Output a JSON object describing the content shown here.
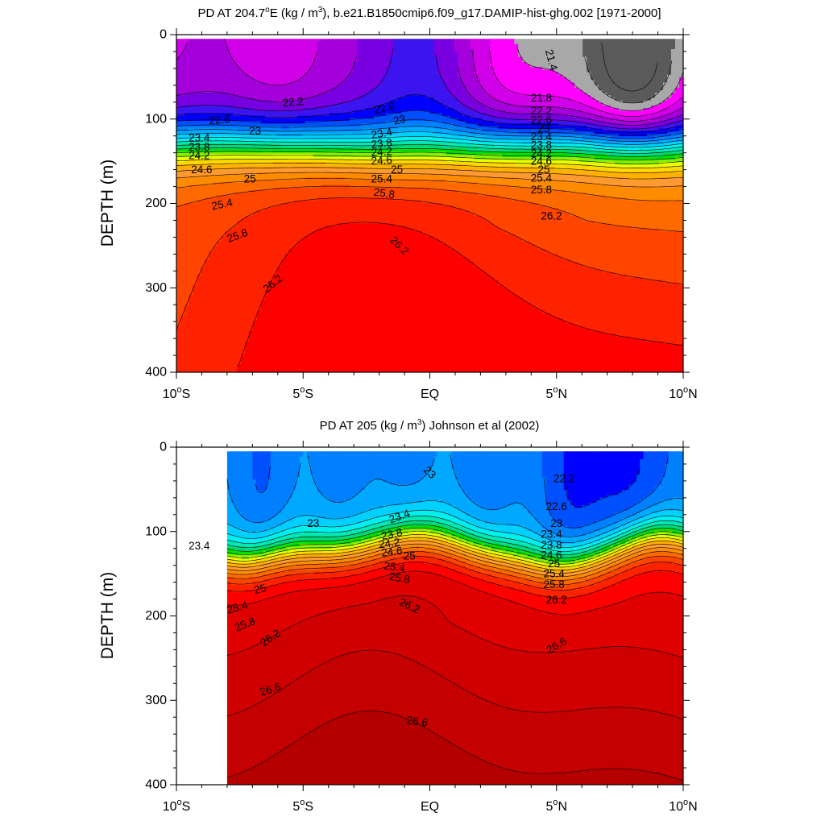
{
  "chart_data": [
    {
      "type": "contour",
      "title_main": "PD AT 204.7",
      "title_sup_o": "o",
      "title_mid": "E (kg / m",
      "title_sup_3": "3",
      "title_rest": "), b.e21.B1850cmip6.f09_g17.DAMIP-hist-ghg.002 [1971-2000]",
      "ylabel": "DEPTH (m)",
      "xlim": [
        -10,
        10
      ],
      "ylim": [
        0,
        400
      ],
      "data_xlim": [
        -10,
        10
      ],
      "y_ticks": [
        "0",
        "100",
        "200",
        "300",
        "400"
      ],
      "y_tick_values": [
        0,
        100,
        200,
        300,
        400
      ],
      "x_ticks": [
        {
          "value": -10,
          "pre": "10",
          "sup": "o",
          "post": "S"
        },
        {
          "value": -5,
          "pre": "5",
          "sup": "o",
          "post": "S"
        },
        {
          "value": 0,
          "pre": "EQ",
          "sup": "",
          "post": ""
        },
        {
          "value": 5,
          "pre": "5",
          "sup": "o",
          "post": "N"
        },
        {
          "value": 10,
          "pre": "10",
          "sup": "o",
          "post": "N"
        }
      ],
      "levels": [
        21.4,
        21.6,
        21.8,
        22.0,
        22.2,
        22.4,
        22.6,
        22.8,
        23.0,
        23.2,
        23.4,
        23.6,
        23.8,
        24.0,
        24.2,
        24.4,
        24.6,
        24.8,
        25.0,
        25.2,
        25.4,
        25.6,
        25.8,
        26.0,
        26.2,
        26.4
      ],
      "colors": [
        "#5a5a5a",
        "#a8a8a8",
        "#ff00ff",
        "#d000e8",
        "#a400dc",
        "#7800e0",
        "#3c14f0",
        "#0000ff",
        "#0050ff",
        "#0080ff",
        "#00a8ff",
        "#00d0ff",
        "#00f0f0",
        "#00e8b4",
        "#00d878",
        "#00e000",
        "#80f000",
        "#e8ff00",
        "#ffd700",
        "#ffb000",
        "#ff9a30",
        "#ff8c00",
        "#ff6a00",
        "#ff4500",
        "#ff2200",
        "#ff0000"
      ],
      "contour_labels": [
        {
          "x": 4.8,
          "y": 30,
          "text": "21.4",
          "rot": 75
        },
        {
          "x": -5.4,
          "y": 80,
          "text": "22.2",
          "rot": -5
        },
        {
          "x": -8.3,
          "y": 101,
          "text": "22.6",
          "rot": -5
        },
        {
          "x": -6.9,
          "y": 114,
          "text": "23",
          "rot": 0
        },
        {
          "x": -9.1,
          "y": 122,
          "text": "23.4",
          "rot": 0
        },
        {
          "x": -9.1,
          "y": 133,
          "text": "23.8",
          "rot": 0
        },
        {
          "x": -9.1,
          "y": 143,
          "text": "24.2",
          "rot": 0
        },
        {
          "x": -9.0,
          "y": 160,
          "text": "24.6",
          "rot": 0
        },
        {
          "x": -7.1,
          "y": 171,
          "text": "25",
          "rot": 0
        },
        {
          "x": -8.2,
          "y": 201,
          "text": "25.4",
          "rot": -12
        },
        {
          "x": -7.6,
          "y": 238,
          "text": "25.8",
          "rot": -20
        },
        {
          "x": -6.2,
          "y": 295,
          "text": "26.2",
          "rot": -40
        },
        {
          "x": -1.8,
          "y": 87,
          "text": "22.6",
          "rot": -12
        },
        {
          "x": -1.2,
          "y": 101,
          "text": "23",
          "rot": -12
        },
        {
          "x": -1.9,
          "y": 117,
          "text": "23.4",
          "rot": -10
        },
        {
          "x": -1.9,
          "y": 129,
          "text": "23.8",
          "rot": -6
        },
        {
          "x": -1.9,
          "y": 139,
          "text": "24.2",
          "rot": -4
        },
        {
          "x": -1.9,
          "y": 149,
          "text": "24.6",
          "rot": -4
        },
        {
          "x": -1.3,
          "y": 160,
          "text": "25",
          "rot": 0
        },
        {
          "x": -1.9,
          "y": 171,
          "text": "25.4",
          "rot": 0
        },
        {
          "x": -1.8,
          "y": 188,
          "text": "25.8",
          "rot": 8
        },
        {
          "x": -1.2,
          "y": 250,
          "text": "26.2",
          "rot": 45
        },
        {
          "x": 4.4,
          "y": 75,
          "text": "21.8",
          "rot": 0
        },
        {
          "x": 4.4,
          "y": 90,
          "text": "22.2",
          "rot": 0
        },
        {
          "x": 4.4,
          "y": 101,
          "text": "22.6",
          "rot": 0
        },
        {
          "x": 4.5,
          "y": 111,
          "text": "23",
          "rot": 0
        },
        {
          "x": 4.4,
          "y": 121,
          "text": "23.4",
          "rot": 0
        },
        {
          "x": 4.4,
          "y": 131,
          "text": "23.8",
          "rot": 0
        },
        {
          "x": 4.4,
          "y": 141,
          "text": "24.2",
          "rot": 0
        },
        {
          "x": 4.4,
          "y": 150,
          "text": "24.6",
          "rot": 0
        },
        {
          "x": 4.5,
          "y": 160,
          "text": "25",
          "rot": 0
        },
        {
          "x": 4.4,
          "y": 170,
          "text": "25.4",
          "rot": 0
        },
        {
          "x": 4.4,
          "y": 184,
          "text": "25.8",
          "rot": 0
        },
        {
          "x": 4.8,
          "y": 215,
          "text": "26.2",
          "rot": 0
        }
      ]
    },
    {
      "type": "contour",
      "title_main": "PD AT 205 (kg / m",
      "title_sup_o": "",
      "title_mid": "",
      "title_sup_3": "3",
      "title_rest": ") Johnson et al (2002)",
      "ylabel": "DEPTH (m)",
      "xlim": [
        -10,
        10
      ],
      "ylim": [
        0,
        400
      ],
      "data_xlim": [
        -8,
        10
      ],
      "y_ticks": [
        "0",
        "100",
        "200",
        "300",
        "400"
      ],
      "y_tick_values": [
        0,
        100,
        200,
        300,
        400
      ],
      "x_ticks": [
        {
          "value": -10,
          "pre": "10",
          "sup": "o",
          "post": "S"
        },
        {
          "value": -5,
          "pre": "5",
          "sup": "o",
          "post": "S"
        },
        {
          "value": 0,
          "pre": "EQ",
          "sup": "",
          "post": ""
        },
        {
          "value": 5,
          "pre": "5",
          "sup": "o",
          "post": "N"
        },
        {
          "value": 10,
          "pre": "10",
          "sup": "o",
          "post": "N"
        }
      ],
      "levels": [
        22.0,
        22.2,
        22.4,
        22.6,
        22.8,
        23.0,
        23.2,
        23.4,
        23.6,
        23.8,
        24.0,
        24.2,
        24.4,
        24.6,
        24.8,
        25.0,
        25.2,
        25.4,
        25.6,
        25.8,
        26.0,
        26.2,
        26.4,
        26.6,
        26.8
      ],
      "colors": [
        "#7800e0",
        "#3c14f0",
        "#0000ff",
        "#0050ff",
        "#0080ff",
        "#00a8ff",
        "#00d0ff",
        "#00f0f0",
        "#00e8b4",
        "#00d878",
        "#00e000",
        "#80f000",
        "#e8ff00",
        "#ffd700",
        "#ffb000",
        "#ff9a30",
        "#ff8c00",
        "#ff6a00",
        "#ff4500",
        "#ff2200",
        "#ff0000",
        "#e00000",
        "#d00000",
        "#c40000",
        "#b40000"
      ],
      "contour_labels": [
        {
          "x": 0.0,
          "y": 30,
          "text": "23",
          "rot": 45
        },
        {
          "x": 5.3,
          "y": 37,
          "text": "22.2",
          "rot": 0
        },
        {
          "x": 5.0,
          "y": 70,
          "text": "22.6",
          "rot": 0
        },
        {
          "x": 5.0,
          "y": 90,
          "text": "23",
          "rot": 0
        },
        {
          "x": -4.6,
          "y": 90,
          "text": "23",
          "rot": 0
        },
        {
          "x": -9.1,
          "y": 117,
          "text": "23.4",
          "rot": 0
        },
        {
          "x": -1.2,
          "y": 82,
          "text": "23.4",
          "rot": -20
        },
        {
          "x": -1.5,
          "y": 103,
          "text": "23.8",
          "rot": -12
        },
        {
          "x": -1.6,
          "y": 114,
          "text": "24.2",
          "rot": -8
        },
        {
          "x": -1.5,
          "y": 124,
          "text": "24.6",
          "rot": -6
        },
        {
          "x": -0.8,
          "y": 129,
          "text": "25",
          "rot": 0
        },
        {
          "x": -1.4,
          "y": 142,
          "text": "25.4",
          "rot": 8
        },
        {
          "x": -1.2,
          "y": 155,
          "text": "25.8",
          "rot": 10
        },
        {
          "x": -0.8,
          "y": 188,
          "text": "26.2",
          "rot": 25
        },
        {
          "x": 4.8,
          "y": 103,
          "text": "23.4",
          "rot": 0
        },
        {
          "x": 4.8,
          "y": 116,
          "text": "23.8",
          "rot": 0
        },
        {
          "x": 4.8,
          "y": 128,
          "text": "24.6",
          "rot": 0
        },
        {
          "x": 4.9,
          "y": 138,
          "text": "25",
          "rot": 0
        },
        {
          "x": 4.9,
          "y": 150,
          "text": "25.4",
          "rot": 0
        },
        {
          "x": 4.9,
          "y": 163,
          "text": "25.8",
          "rot": 0
        },
        {
          "x": 5.0,
          "y": 181,
          "text": "26.2",
          "rot": 0
        },
        {
          "x": -6.7,
          "y": 168,
          "text": "25",
          "rot": -12
        },
        {
          "x": -7.6,
          "y": 190,
          "text": "25.4",
          "rot": -16
        },
        {
          "x": -7.3,
          "y": 210,
          "text": "25.8",
          "rot": -22
        },
        {
          "x": -6.3,
          "y": 226,
          "text": "26.2",
          "rot": -35
        },
        {
          "x": 5.0,
          "y": 235,
          "text": "26.6",
          "rot": -30
        },
        {
          "x": -6.3,
          "y": 287,
          "text": "26.6",
          "rot": -18
        },
        {
          "x": -0.5,
          "y": 325,
          "text": "26.6",
          "rot": 8
        }
      ]
    }
  ]
}
